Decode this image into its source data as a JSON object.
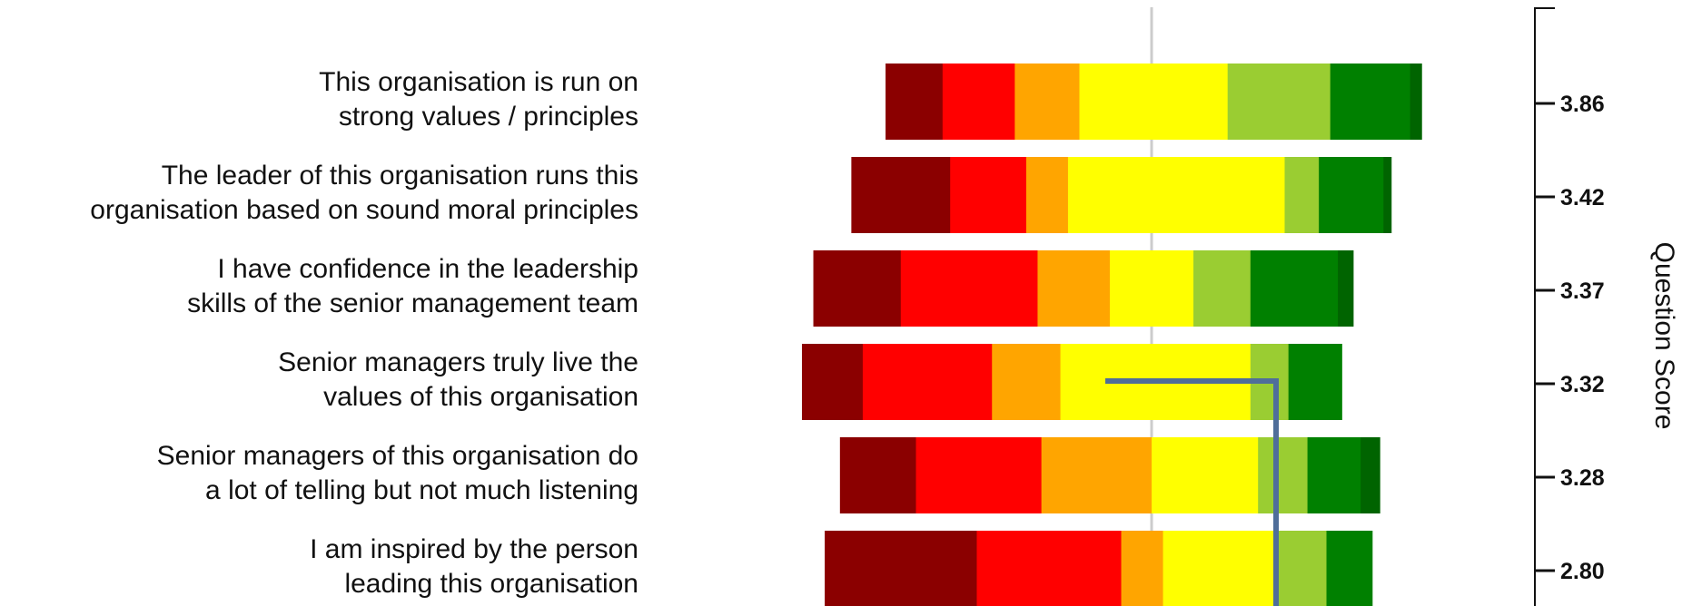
{
  "chart_data": {
    "type": "bar",
    "orientation": "horizontal",
    "stacked": true,
    "diverging": true,
    "right_axis_title": "Question Score",
    "segment_colors": [
      "#8b0000",
      "#ff0000",
      "#ffa500",
      "#ffff00",
      "#9acd32",
      "#008000",
      "#006400"
    ],
    "reference_line_color": "#cccccc",
    "marker_line_color": "#4f6e9a",
    "questions": [
      {
        "label_lines": [
          "This organisation is run on",
          "strong values / principles"
        ],
        "score": "3.86",
        "segments": [
          7.5,
          9.5,
          8.5,
          19.5,
          13.5,
          10.5,
          1.5
        ]
      },
      {
        "label_lines": [
          "The leader of this organisation runs this",
          "organisation based on sound moral principles"
        ],
        "score": "3.42",
        "segments": [
          13,
          10,
          5.5,
          28.5,
          4.5,
          8.5,
          1
        ]
      },
      {
        "label_lines": [
          "I have confidence in the leadership",
          "skills of the senior management team"
        ],
        "score": "3.37",
        "segments": [
          11.5,
          18,
          9.5,
          11,
          7.5,
          11.5,
          2
        ]
      },
      {
        "label_lines": [
          "Senior managers truly live the",
          "values of this organisation"
        ],
        "score": "3.32",
        "segments": [
          8,
          17,
          9,
          25,
          5,
          7,
          0
        ]
      },
      {
        "label_lines": [
          "Senior managers of this organisation do",
          "a lot of telling but not much listening"
        ],
        "score": "3.28",
        "segments": [
          10,
          16.5,
          14.5,
          14,
          6.5,
          7,
          2.5
        ]
      },
      {
        "label_lines": [
          "I am inspired by the person",
          "leading this organisation"
        ],
        "score": "2.80",
        "segments": [
          20,
          19,
          5.5,
          15,
          6.5,
          6,
          0
        ]
      }
    ],
    "center_offsets": [
      35,
      39.5,
      44.5,
      46,
      41,
      43
    ],
    "marker": {
      "score_from": "3.32",
      "score_to": "2.80"
    },
    "grid": false,
    "legend": "none"
  }
}
